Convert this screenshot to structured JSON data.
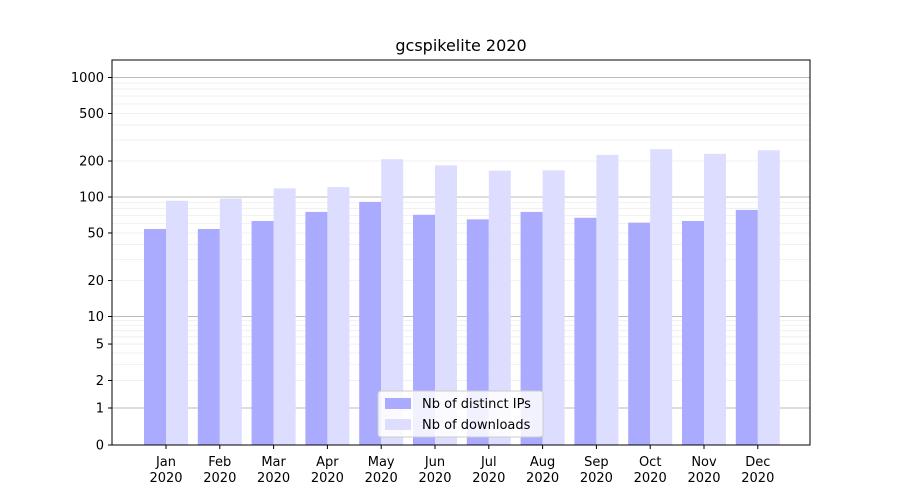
{
  "chart_data": {
    "type": "bar",
    "title": "gcspikelite 2020",
    "xlabel": "",
    "ylabel": "",
    "y_scale": "symlog",
    "y_tick_labels": [
      "0",
      "1",
      "2",
      "5",
      "10",
      "20",
      "50",
      "100",
      "200",
      "500",
      "1000"
    ],
    "ylim": [
      0,
      1200
    ],
    "categories": [
      "Jan\n2020",
      "Feb\n2020",
      "Mar\n2020",
      "Apr\n2020",
      "May\n2020",
      "Jun\n2020",
      "Jul\n2020",
      "Aug\n2020",
      "Sep\n2020",
      "Oct\n2020",
      "Nov\n2020",
      "Dec\n2020"
    ],
    "series": [
      {
        "name": "Nb of distinct IPs",
        "color": "#aaaaff",
        "values": [
          54,
          54,
          63,
          75,
          91,
          71,
          65,
          75,
          67,
          61,
          63,
          78
        ]
      },
      {
        "name": "Nb of downloads",
        "color": "#ddddff",
        "values": [
          93,
          97,
          118,
          121,
          207,
          184,
          166,
          167,
          225,
          251,
          230,
          246
        ]
      }
    ],
    "grid": true,
    "legend_position": "bottom-center"
  }
}
